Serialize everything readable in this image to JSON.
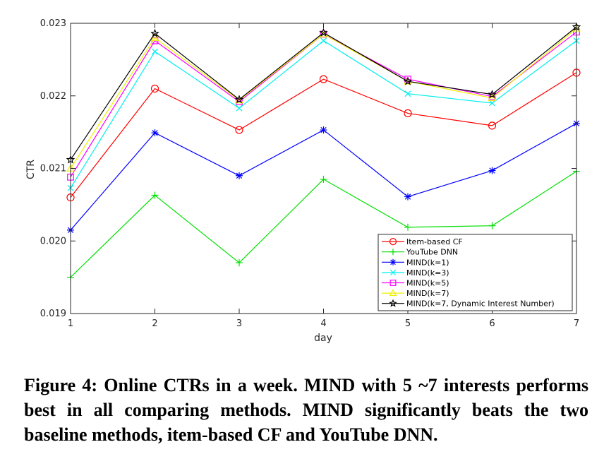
{
  "chart_data": {
    "type": "line",
    "title": "",
    "xlabel": "day",
    "ylabel": "CTR",
    "x": [
      1,
      2,
      3,
      4,
      5,
      6,
      7
    ],
    "xticks": [
      "1",
      "2",
      "3",
      "4",
      "5",
      "6",
      "7"
    ],
    "xlim": [
      1,
      7
    ],
    "ylim": [
      0.019,
      0.023
    ],
    "yticks": [
      "0.019",
      "0.020",
      "0.021",
      "0.022",
      "0.023"
    ],
    "ytick_values": [
      0.019,
      0.02,
      0.021,
      0.022,
      0.023
    ],
    "grid": false,
    "legend_position": "bottom-right",
    "series": [
      {
        "name": "Item-based CF",
        "color": "#ff0000",
        "marker": "circle",
        "values": [
          0.0206,
          0.0221,
          0.02153,
          0.02223,
          0.02176,
          0.02159,
          0.02232
        ]
      },
      {
        "name": "YouTube DNN",
        "color": "#00e000",
        "marker": "plus",
        "values": [
          0.0195,
          0.02063,
          0.0197,
          0.02085,
          0.02019,
          0.02021,
          0.02096
        ]
      },
      {
        "name": "MIND(k=1)",
        "color": "#0000ff",
        "marker": "asterisk",
        "values": [
          0.02015,
          0.02149,
          0.0209,
          0.02153,
          0.02061,
          0.02097,
          0.02162
        ]
      },
      {
        "name": "MIND(k=3)",
        "color": "#00eeee",
        "marker": "x",
        "values": [
          0.02073,
          0.02261,
          0.02183,
          0.02276,
          0.02203,
          0.0219,
          0.02276
        ]
      },
      {
        "name": "MIND(k=5)",
        "color": "#ff00ff",
        "marker": "square",
        "values": [
          0.02088,
          0.02276,
          0.02192,
          0.02285,
          0.02223,
          0.02199,
          0.02288
        ]
      },
      {
        "name": "MIND(k=7)",
        "color": "#f0f000",
        "marker": "triangle",
        "values": [
          0.021,
          0.0228,
          0.02194,
          0.02285,
          0.0222,
          0.02197,
          0.02293
        ]
      },
      {
        "name": "MIND(k=7, Dynamic Interest Number)",
        "color": "#000000",
        "marker": "star",
        "values": [
          0.02112,
          0.02286,
          0.02195,
          0.02287,
          0.0222,
          0.02202,
          0.02295
        ]
      }
    ]
  },
  "caption": {
    "text": "Figure 4: Online CTRs in a week. MIND with 5 ~7 interests performs best in all comparing methods. MIND significantly beats the two baseline methods, item-based CF and YouTube DNN."
  }
}
